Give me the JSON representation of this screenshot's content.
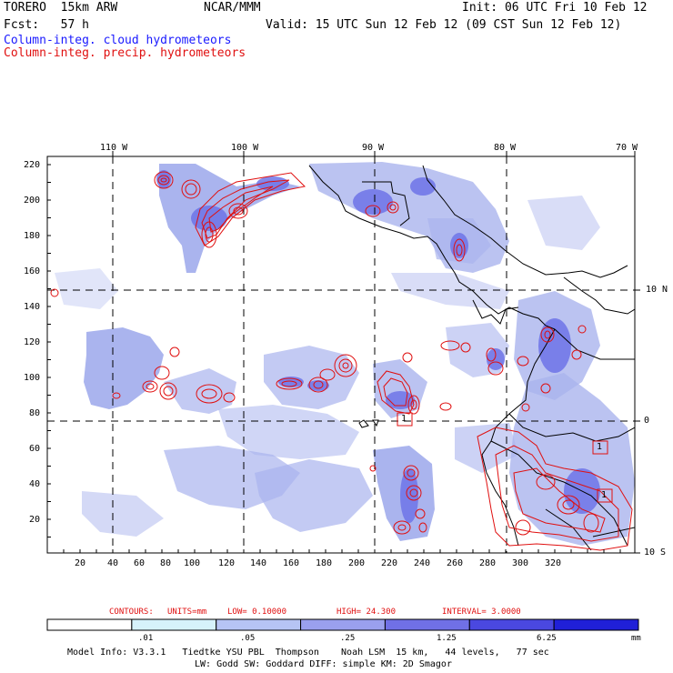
{
  "header": {
    "model": "TORERO  15km ARW",
    "center": "NCAR/MMM",
    "init": "Init: 06 UTC Fri 10 Feb 12",
    "fcst": "Fcst:   57 h",
    "valid": "Valid: 15 UTC Sun 12 Feb 12 (09 CST Sun 12 Feb 12)"
  },
  "legend": {
    "cloud": "Column-integ. cloud hydrometeors",
    "precip": "Column-integ. precip. hydrometeors"
  },
  "colors": {
    "cloud_fill": "#aab4ee",
    "cloud_dark": "#6e74e8",
    "contour": "#e01010",
    "land": "#000000"
  },
  "axes": {
    "top_lon_labels": [
      "110 W",
      "100 W",
      "90 W",
      "80 W",
      "70 W"
    ],
    "right_lat_labels": [
      "10 N",
      "0",
      "10 S"
    ],
    "left_ticks": [
      "220",
      "200",
      "180",
      "160",
      "140",
      "120",
      "100",
      "80",
      "60",
      "40",
      "20"
    ],
    "bottom_ticks": [
      "20",
      "40",
      "60",
      "80",
      "100",
      "120",
      "140",
      "160",
      "180",
      "200",
      "220",
      "240",
      "260",
      "280",
      "300",
      "320"
    ]
  },
  "contours_note": {
    "label": "CONTOURS:",
    "units": "UNITS=mm",
    "low": "LOW= 0.10000",
    "high": "HIGH= 24.300",
    "interval": "INTERVAL= 3.0000"
  },
  "colorbar": {
    "labels": [
      ".01",
      ".05",
      ".25",
      "1.25",
      "6.25"
    ],
    "unit": "mm",
    "colors": [
      "#ffffff",
      "#d6f2fb",
      "#b6c4f4",
      "#9aa0ee",
      "#7070e6",
      "#4a48e0",
      "#2020d8"
    ]
  },
  "footer": {
    "line1": "Model Info: V3.3.1   Tiedtke YSU PBL  Thompson    Noah LSM  15 km,   44 levels,   77 sec",
    "line2": "LW: Godd SW: Goddard DIFF: simple KM: 2D Smagor"
  },
  "markers": [
    "1",
    "1",
    "1"
  ]
}
